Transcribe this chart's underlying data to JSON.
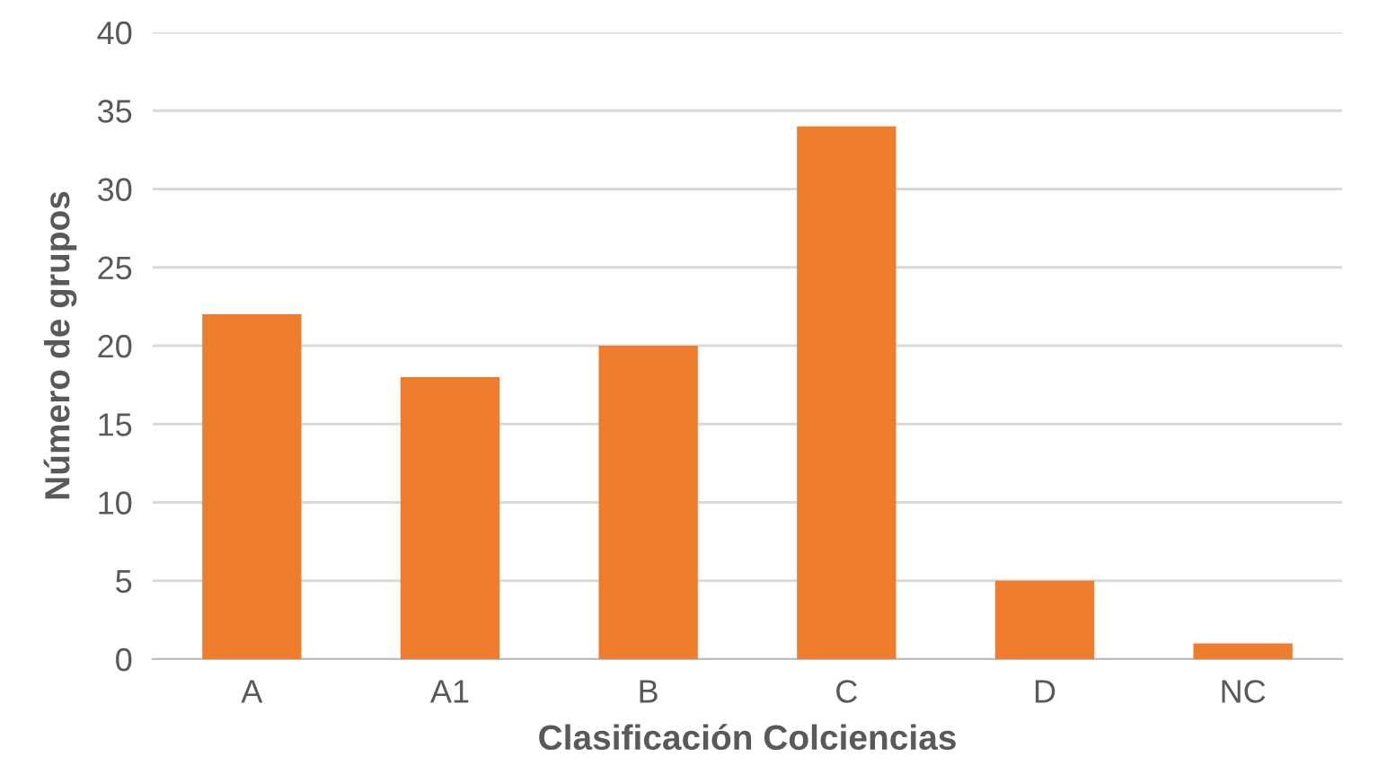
{
  "chart_data": {
    "type": "bar",
    "xlabel": "Clasificación Colciencias",
    "ylabel": "Número de grupos",
    "categories": [
      "A",
      "A1",
      "B",
      "C",
      "D",
      "NC"
    ],
    "values": [
      22,
      18,
      20,
      34,
      5,
      1
    ],
    "color": "#ef7d2e",
    "ylim": [
      0,
      40
    ],
    "yticks": [
      0,
      5,
      10,
      15,
      20,
      25,
      30,
      35,
      40
    ],
    "grid": "y"
  }
}
